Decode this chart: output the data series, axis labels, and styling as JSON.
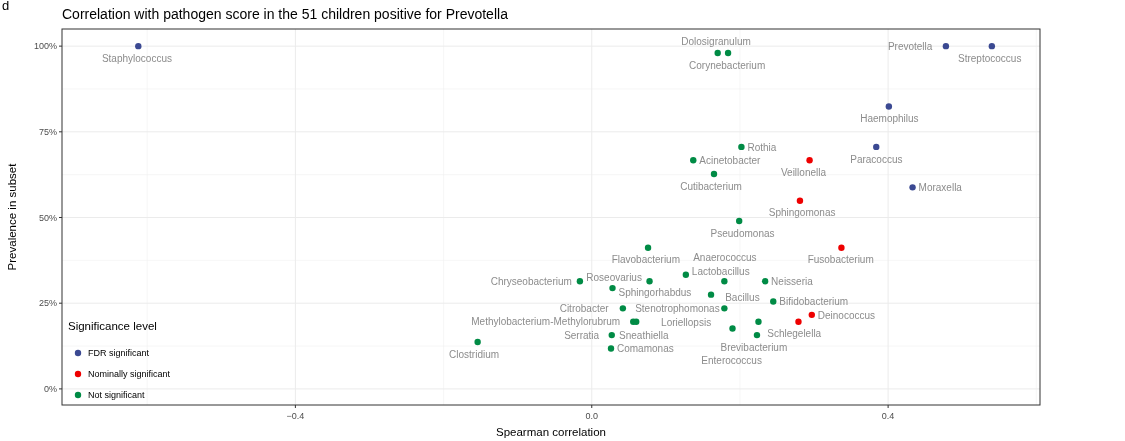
{
  "chart_data": {
    "type": "scatter",
    "title": "Correlation with pathogen score in the 51 children positive for Prevotella",
    "xlabel": "Spearman correlation",
    "ylabel": "Prevalence in subset",
    "legend_title": "Significance level",
    "xlim": [
      -0.715,
      0.605
    ],
    "xticks": [
      {
        "value": -0.4,
        "label": "−0.4"
      },
      {
        "value": 0,
        "label": "0.0"
      },
      0.4
    ],
    "ylim": [
      -4.7,
      105
    ],
    "yticks": [
      {
        "value": 0,
        "label": "0%"
      },
      {
        "value": 25,
        "label": "25%"
      },
      {
        "value": 50,
        "label": "50%"
      },
      {
        "value": 75,
        "label": "75%"
      },
      {
        "value": 100,
        "label": "100%"
      }
    ],
    "grid": true,
    "legend": "bottom left",
    "marker": "circle",
    "series": [
      {
        "name": "FDR significant",
        "color": "#3b4992",
        "x": [
          -0.612,
          0.478,
          0.54,
          0.401,
          0.384,
          0.433
        ],
        "values": [
          100,
          100,
          100,
          82.4,
          70.6,
          58.8
        ]
      },
      {
        "name": "Nominally significant",
        "color": "#ee0000",
        "x": [
          0.294,
          0.281,
          0.337,
          0.297,
          0.279
        ],
        "values": [
          66.7,
          54.9,
          41.2,
          21.6,
          19.6
        ]
      },
      {
        "name": "Not significant",
        "color": "#008b45",
        "x": [
          0.17,
          0.184,
          0.202,
          0.137,
          0.165,
          0.199,
          0.076,
          0.127,
          -0.016,
          0.078,
          0.179,
          0.234,
          0.028,
          0.161,
          0.245,
          0.042,
          0.179,
          0.056,
          0.06,
          0.225,
          0.19,
          0.223,
          0.027,
          0.026,
          -0.154
        ],
        "values": [
          98,
          98,
          70.6,
          66.7,
          62.7,
          49,
          41.2,
          33.3,
          31.4,
          31.4,
          31.4,
          31.4,
          29.4,
          27.5,
          25.5,
          23.5,
          23.5,
          19.6,
          19.6,
          19.6,
          17.6,
          15.7,
          15.7,
          11.8,
          13.7
        ]
      }
    ],
    "annotations": [
      "d",
      {
        "text": "Staphylococcus",
        "x": -0.612,
        "y": 100
      },
      {
        "text": "Prevotella",
        "x": 0.478,
        "y": 100
      },
      {
        "text": "Streptococcus",
        "x": 0.54,
        "y": 100
      },
      {
        "text": "Haemophilus",
        "x": 0.401,
        "y": 82.4
      },
      {
        "text": "Paracoccus",
        "x": 0.384,
        "y": 70.6
      },
      {
        "text": "Moraxella",
        "x": 0.433,
        "y": 58.8
      },
      {
        "text": "Veillonella",
        "x": 0.294,
        "y": 66.7
      },
      {
        "text": "Sphingomonas",
        "x": 0.281,
        "y": 54.9
      },
      {
        "text": "Fusobacterium",
        "x": 0.337,
        "y": 41.2
      },
      {
        "text": "Deinococcus",
        "x": 0.297,
        "y": 21.6
      },
      {
        "text": "Schlegelella",
        "x": 0.279,
        "y": 19.6
      },
      {
        "text": "Dolosigranulum",
        "x": 0.17,
        "y": 98
      },
      {
        "text": "Corynebacterium",
        "x": 0.184,
        "y": 98
      },
      {
        "text": "Rothia",
        "x": 0.202,
        "y": 70.6
      },
      {
        "text": "Acinetobacter",
        "x": 0.137,
        "y": 66.7
      },
      {
        "text": "Cutibacterium",
        "x": 0.165,
        "y": 62.7
      },
      {
        "text": "Pseudomonas",
        "x": 0.199,
        "y": 49
      },
      {
        "text": "Flavobacterium",
        "x": 0.076,
        "y": 41.2
      },
      {
        "text": "Lactobacillus",
        "x": 0.127,
        "y": 33.3
      },
      {
        "text": "Chryseobacterium",
        "x": -0.016,
        "y": 31.4
      },
      {
        "text": "Roseovarius",
        "x": 0.078,
        "y": 31.4
      },
      {
        "text": "Anaerococcus",
        "x": 0.179,
        "y": 31.4
      },
      {
        "text": "Neisseria",
        "x": 0.234,
        "y": 31.4
      },
      {
        "text": "Sphingorhabdus",
        "x": 0.028,
        "y": 29.4
      },
      {
        "text": "Loriellopsis",
        "x": 0.161,
        "y": 27.5
      },
      {
        "text": "Bifidobacterium",
        "x": 0.245,
        "y": 25.5
      },
      {
        "text": "Citrobacter",
        "x": 0.042,
        "y": 23.5
      },
      {
        "text": "Stenotrophomonas",
        "x": 0.179,
        "y": 23.5
      },
      {
        "text": "Methylobacterium-Methylorubrum",
        "x": 0.056,
        "y": 19.6
      },
      {
        "text": "Sneathiella",
        "x": 0.06,
        "y": 19.6
      },
      {
        "text": "Bacillus",
        "x": 0.225,
        "y": 19.6
      },
      {
        "text": "Enterococcus",
        "x": 0.19,
        "y": 17.6
      },
      {
        "text": "Brevibacterium",
        "x": 0.223,
        "y": 15.7
      },
      {
        "text": "Serratia",
        "x": 0.027,
        "y": 15.7
      },
      {
        "text": "Comamonas",
        "x": 0.026,
        "y": 11.8
      },
      {
        "text": "Clostridium",
        "x": -0.154,
        "y": 13.7
      }
    ]
  }
}
